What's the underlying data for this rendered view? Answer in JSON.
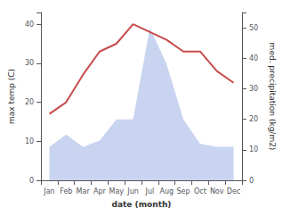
{
  "chart_data": {
    "type": "line",
    "xlabel": "date (month)",
    "ylabel": "max temp (C)",
    "y2label": "med. precipitation (kg/m2)",
    "categories": [
      "Jan",
      "Feb",
      "Mar",
      "Apr",
      "May",
      "Jun",
      "Jul",
      "Aug",
      "Sep",
      "Oct",
      "Nov",
      "Dec"
    ],
    "series": [
      {
        "type": "area",
        "axis": "y2",
        "color": "#c8d4f0",
        "values": [
          11,
          15,
          11,
          13,
          20,
          20,
          50,
          38,
          20,
          12,
          11,
          11
        ]
      },
      {
        "type": "line",
        "color": "#c84b4b",
        "values": [
          17,
          20,
          27,
          33,
          35,
          40,
          38,
          36,
          33,
          33,
          28,
          25
        ]
      }
    ],
    "ylim": [
      0,
      43
    ],
    "yticks": [
      0,
      10,
      20,
      30,
      40
    ],
    "y2lim": [
      0,
      55
    ],
    "y2ticks": [
      0,
      10,
      20,
      30,
      40,
      50
    ],
    "grid": false
  }
}
